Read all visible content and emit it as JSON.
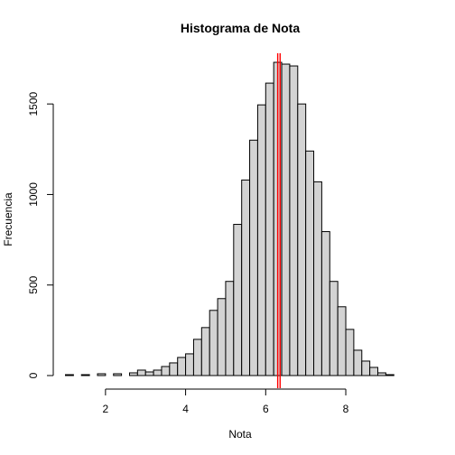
{
  "chart_data": {
    "type": "bar",
    "title": "Histograma de Nota",
    "xlabel": "Nota",
    "ylabel": "Frecuencia",
    "bin_width": 0.2,
    "bin_start": 1.0,
    "values": [
      5,
      0,
      5,
      0,
      10,
      0,
      10,
      0,
      15,
      30,
      20,
      30,
      50,
      70,
      100,
      120,
      200,
      265,
      360,
      425,
      520,
      835,
      1080,
      1300,
      1495,
      1615,
      1730,
      1720,
      1710,
      1500,
      1240,
      1070,
      795,
      520,
      380,
      255,
      140,
      80,
      45,
      15,
      5
    ],
    "xlim": [
      1.0,
      9.6
    ],
    "ylim": [
      0,
      1780
    ],
    "x_ticks": [
      2,
      4,
      6,
      8
    ],
    "y_ticks": [
      0,
      500,
      1000,
      1500
    ],
    "bar_color": "#d3d3d3",
    "reference_lines": [
      {
        "x": 6.3,
        "color": "#ff0000"
      },
      {
        "x": 6.36,
        "color": "#ff0000"
      }
    ],
    "grid": false,
    "legend": "none"
  }
}
